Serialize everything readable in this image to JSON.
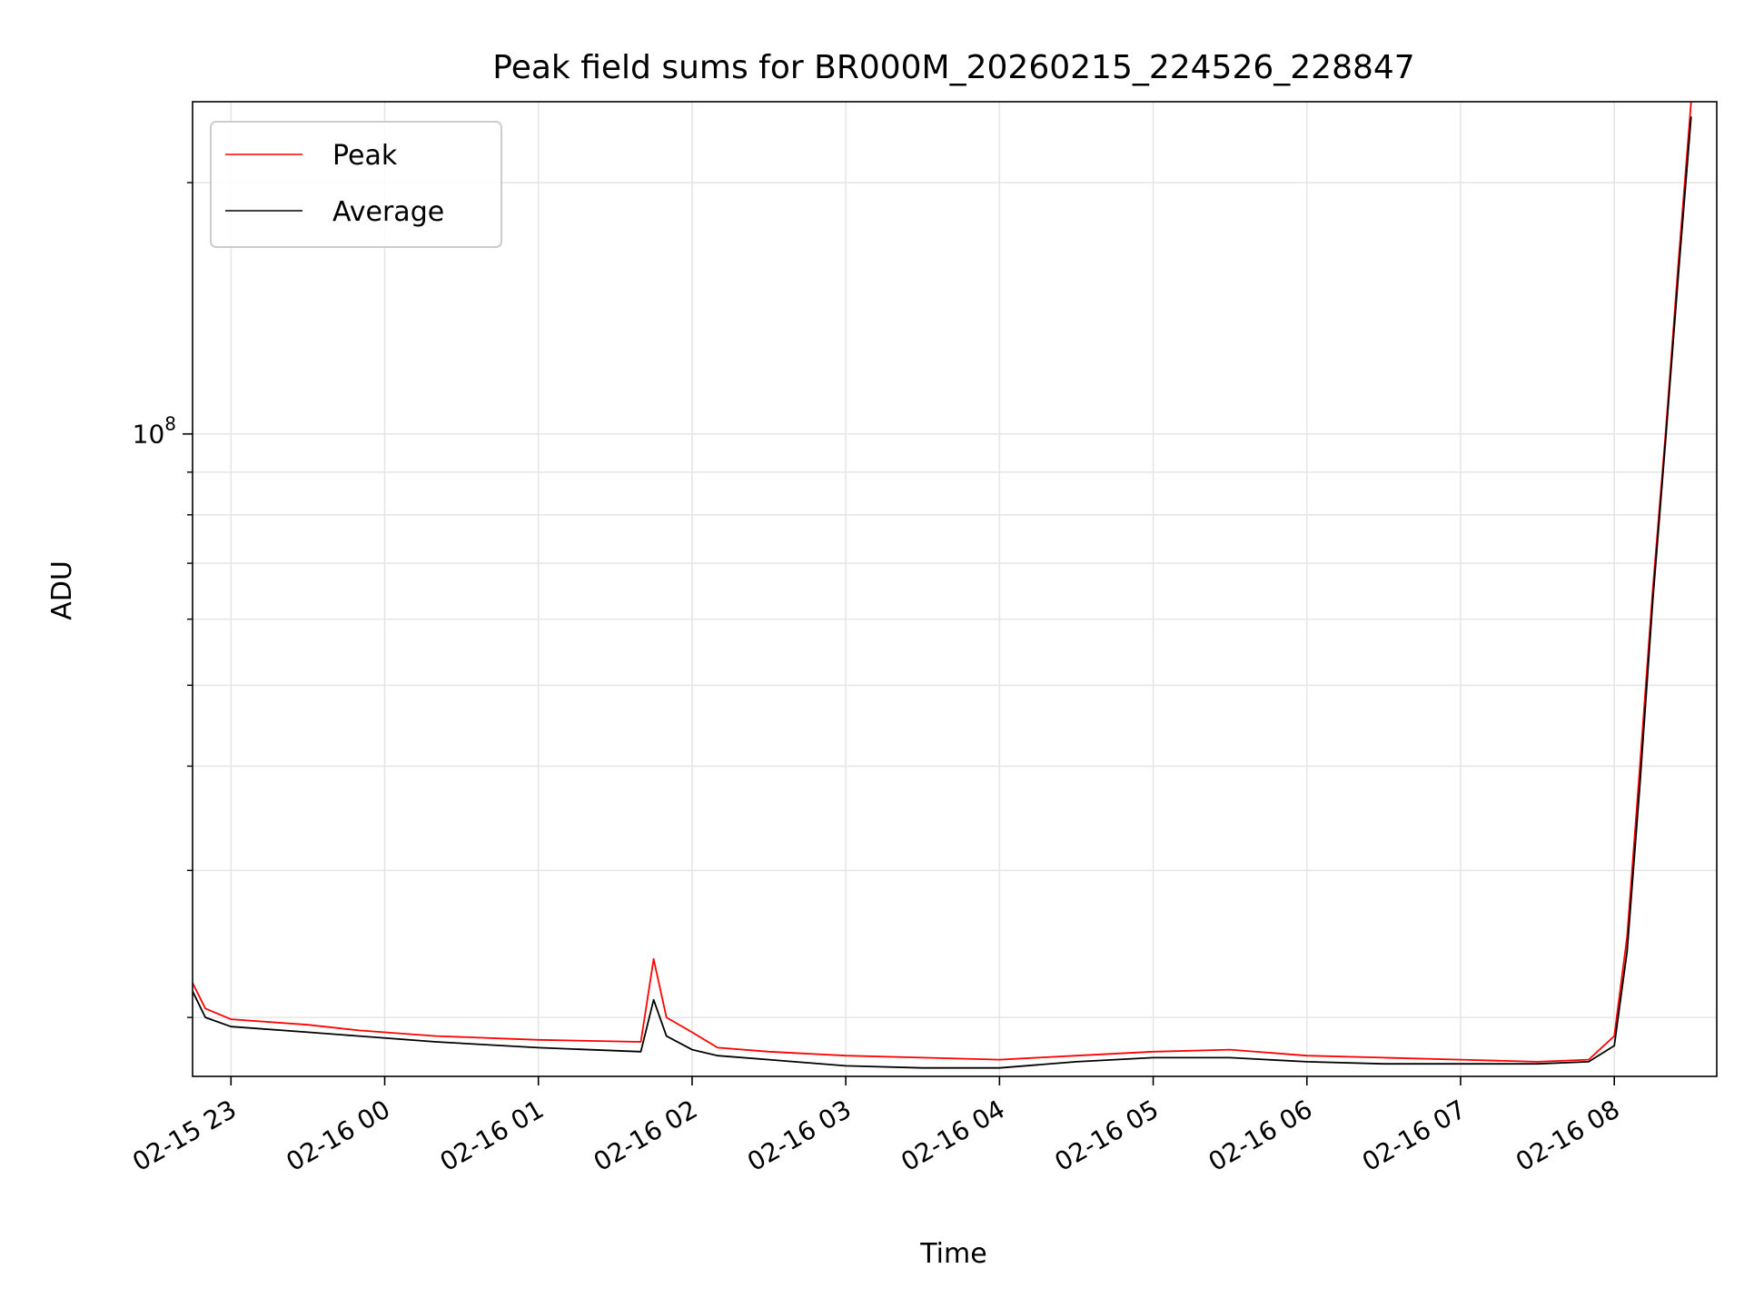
{
  "chart_data": {
    "type": "line",
    "title": "Peak field sums for BR000M_20260215_224526_228847",
    "xlabel": "Time",
    "ylabel": "ADU",
    "yscale": "log",
    "ylim": [
      17000000,
      250000000
    ],
    "xlim": [
      "2026-02-15 22:45",
      "2026-02-16 08:40"
    ],
    "x_ticks": [
      "02-15 23",
      "02-16 00",
      "02-16 01",
      "02-16 02",
      "02-16 03",
      "02-16 04",
      "02-16 05",
      "02-16 06",
      "02-16 07",
      "02-16 08"
    ],
    "y_tick_label": {
      "base": "10",
      "exponent": "8"
    },
    "grid": true,
    "legend": {
      "position": "top-left",
      "entries": [
        "Peak",
        "Average"
      ]
    },
    "colors": {
      "Peak": "#ff0000",
      "Average": "#000000",
      "grid": "#e6e6e6"
    },
    "series": [
      {
        "name": "Peak",
        "x": [
          "2026-02-15 22:45",
          "2026-02-15 22:50",
          "2026-02-15 23:00",
          "2026-02-15 23:30",
          "2026-02-15 23:50",
          "2026-02-16 00:20",
          "2026-02-16 01:00",
          "2026-02-16 01:40",
          "2026-02-16 01:45",
          "2026-02-16 01:50",
          "2026-02-16 02:00",
          "2026-02-16 02:10",
          "2026-02-16 02:30",
          "2026-02-16 03:00",
          "2026-02-16 03:30",
          "2026-02-16 04:00",
          "2026-02-16 04:30",
          "2026-02-16 05:00",
          "2026-02-16 05:30",
          "2026-02-16 06:00",
          "2026-02-16 06:30",
          "2026-02-16 07:00",
          "2026-02-16 07:30",
          "2026-02-16 07:50",
          "2026-02-16 08:00",
          "2026-02-16 08:05",
          "2026-02-16 08:10",
          "2026-02-16 08:15",
          "2026-02-16 08:20",
          "2026-02-16 08:25",
          "2026-02-16 08:30"
        ],
        "y": [
          22000000,
          20500000,
          19900000,
          19600000,
          19300000,
          19000000,
          18800000,
          18700000,
          23500000,
          20000000,
          19200000,
          18400000,
          18200000,
          18000000,
          17900000,
          17800000,
          18000000,
          18200000,
          18300000,
          18000000,
          17900000,
          17800000,
          17700000,
          17800000,
          19000000,
          25000000,
          40000000,
          65000000,
          100000000,
          160000000,
          250000000
        ]
      },
      {
        "name": "Average",
        "x": [
          "2026-02-15 22:45",
          "2026-02-15 22:50",
          "2026-02-15 23:00",
          "2026-02-15 23:30",
          "2026-02-15 23:50",
          "2026-02-16 00:20",
          "2026-02-16 01:00",
          "2026-02-16 01:40",
          "2026-02-16 01:45",
          "2026-02-16 01:50",
          "2026-02-16 02:00",
          "2026-02-16 02:10",
          "2026-02-16 02:30",
          "2026-02-16 03:00",
          "2026-02-16 03:30",
          "2026-02-16 04:00",
          "2026-02-16 04:30",
          "2026-02-16 05:00",
          "2026-02-16 05:30",
          "2026-02-16 06:00",
          "2026-02-16 06:30",
          "2026-02-16 07:00",
          "2026-02-16 07:30",
          "2026-02-16 07:50",
          "2026-02-16 08:00",
          "2026-02-16 08:05",
          "2026-02-16 08:10",
          "2026-02-16 08:15",
          "2026-02-16 08:20",
          "2026-02-16 08:25",
          "2026-02-16 08:30"
        ],
        "y": [
          21500000,
          20000000,
          19500000,
          19200000,
          19000000,
          18700000,
          18400000,
          18200000,
          21000000,
          19000000,
          18300000,
          18000000,
          17800000,
          17500000,
          17400000,
          17400000,
          17700000,
          17900000,
          17900000,
          17700000,
          17600000,
          17600000,
          17600000,
          17700000,
          18500000,
          24000000,
          38000000,
          63000000,
          98000000,
          155000000,
          240000000
        ]
      }
    ]
  }
}
